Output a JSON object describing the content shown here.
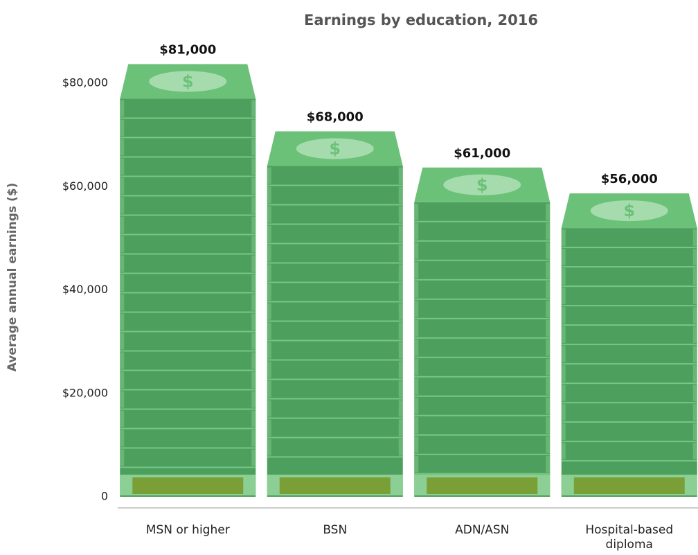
{
  "chart_data": {
    "type": "bar",
    "title": "Earnings by education, 2016",
    "y_label": "Average annual earnings ($)",
    "categories": [
      "MSN or higher",
      "BSN",
      "ADN/ASN",
      "Hospital-based diploma"
    ],
    "values": [
      81000,
      68000,
      61000,
      56000
    ],
    "value_labels": [
      "$81,000",
      "$68,000",
      "$61,000",
      "$56,000"
    ],
    "color": "#4c9f5c",
    "ylim": [
      0,
      80000
    ],
    "yticks": [
      0,
      {
        "value": 20000,
        "label": "$20,000"
      },
      {
        "value": 40000,
        "label": "$40,000"
      },
      {
        "value": 60000,
        "label": "$60,000"
      },
      {
        "value": 80000,
        "label": "$80,000"
      }
    ]
  }
}
